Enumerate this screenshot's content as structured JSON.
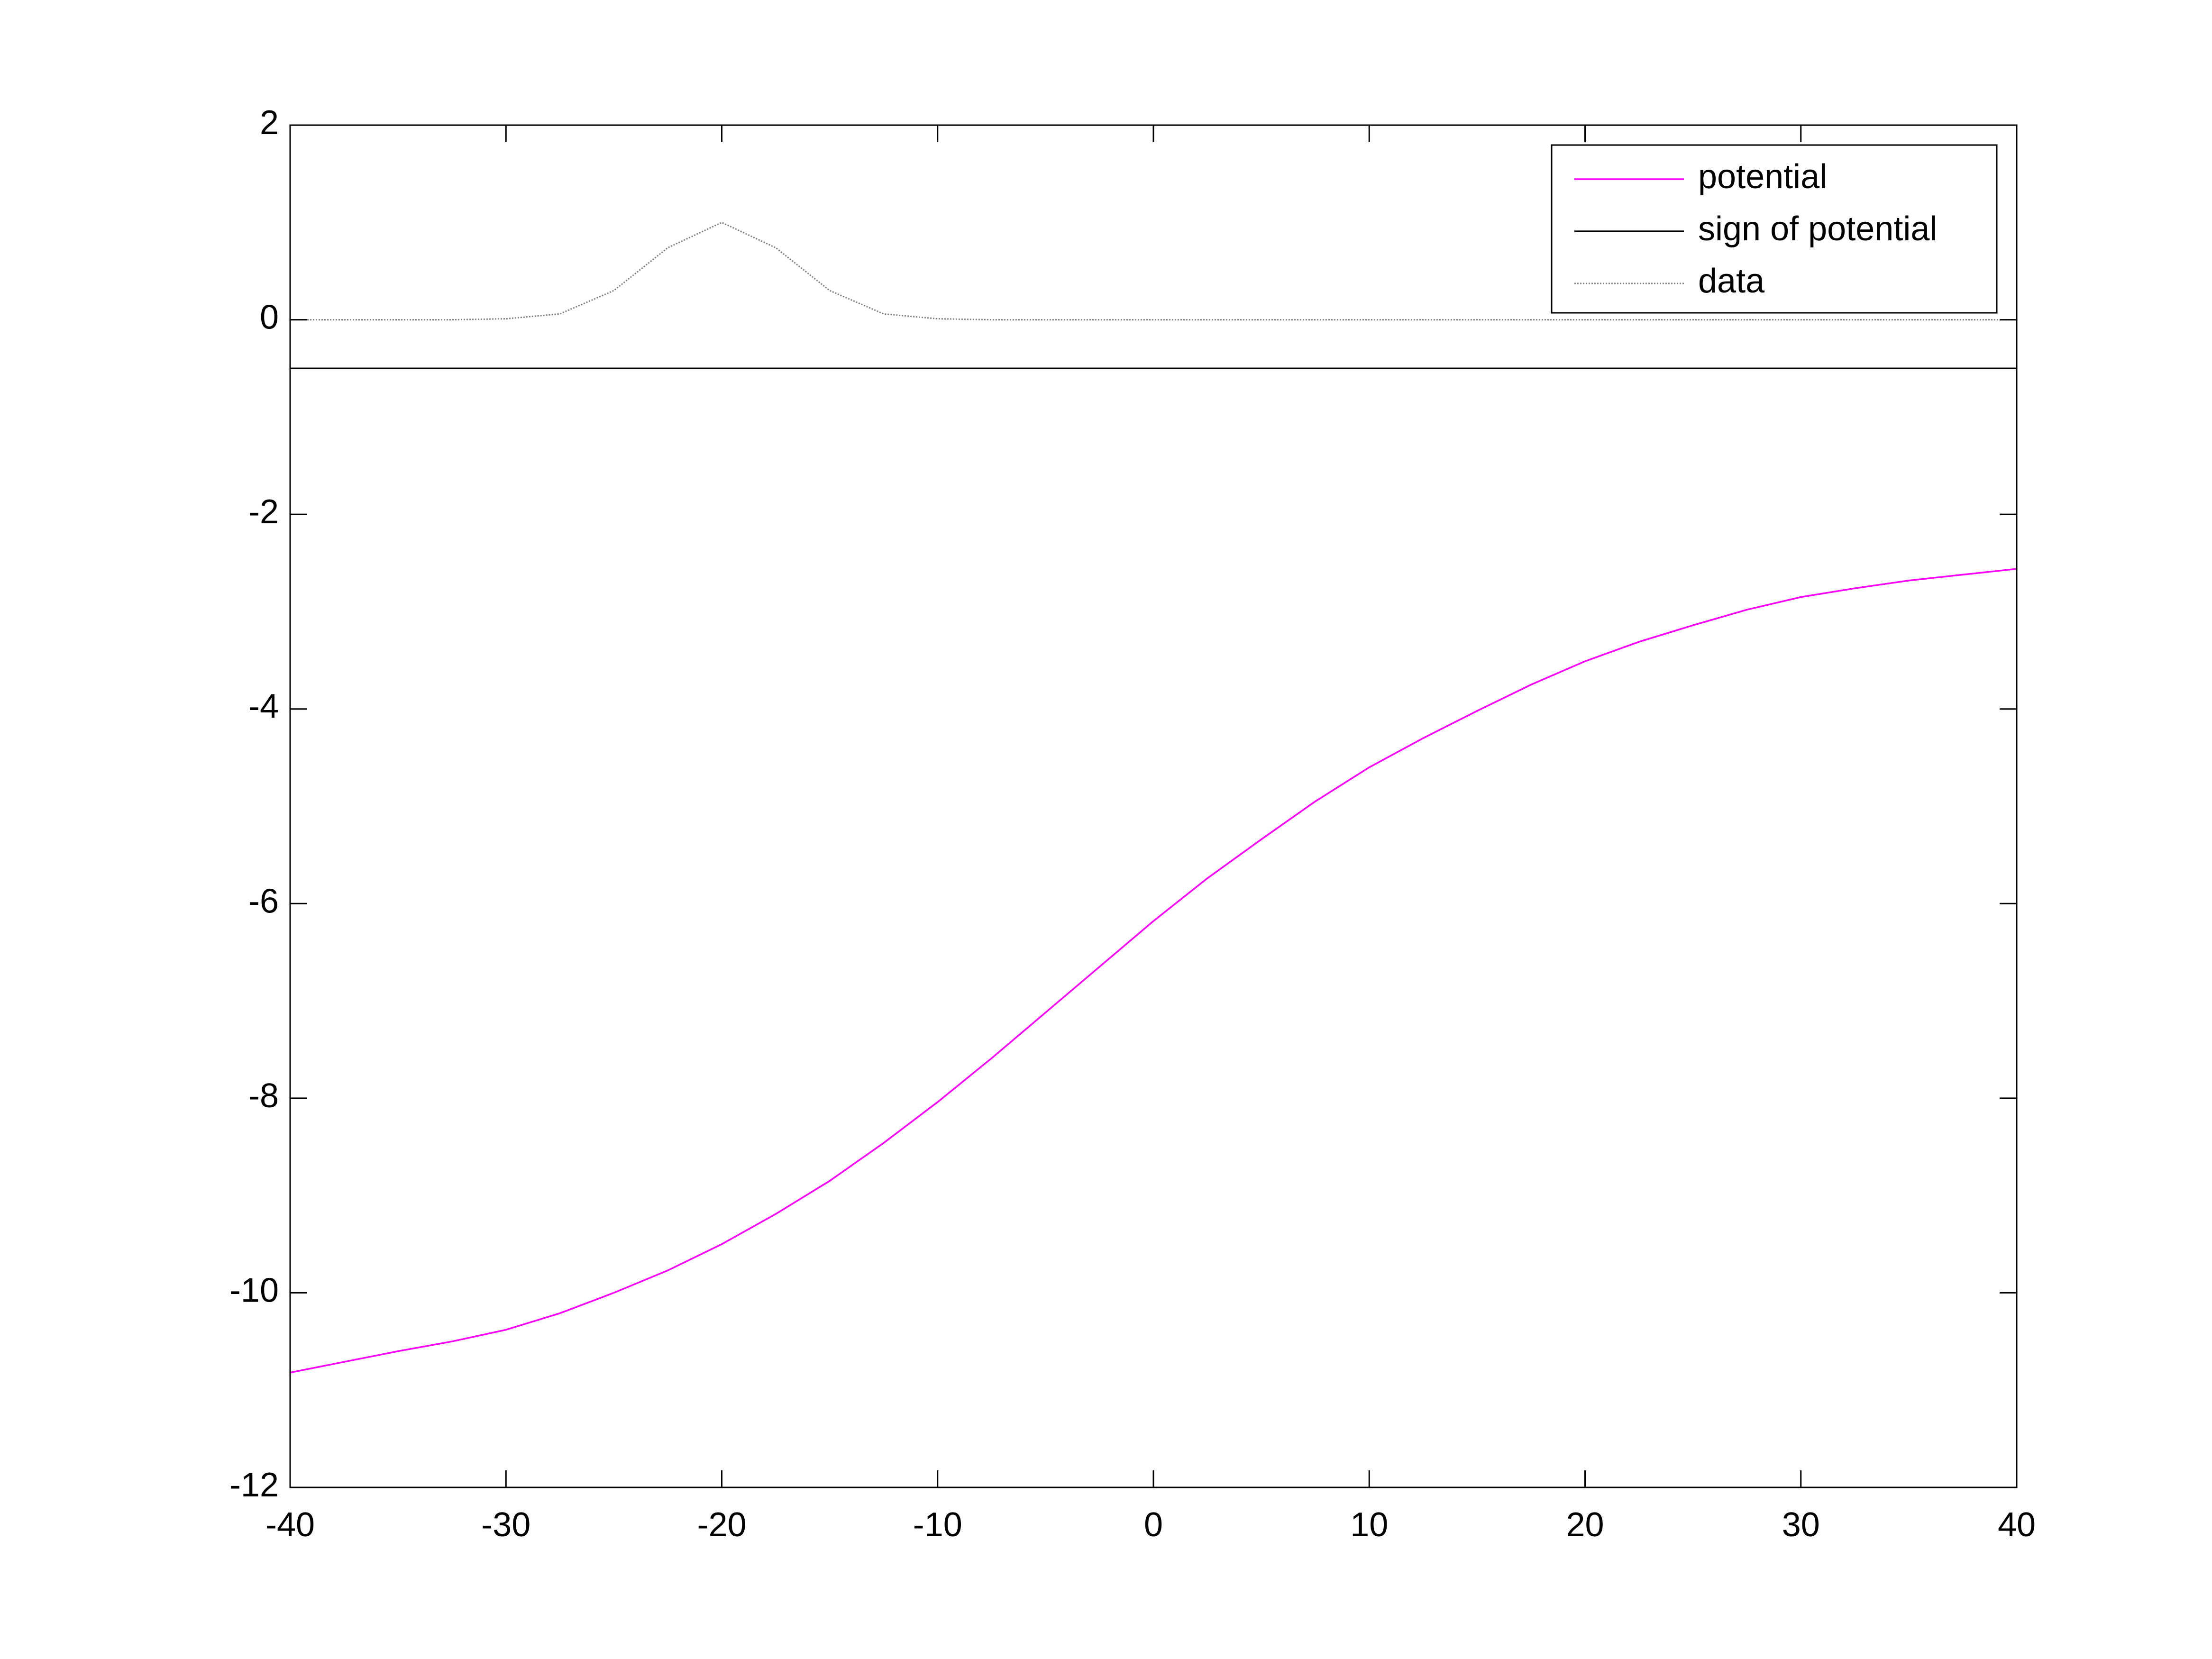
{
  "chart_data": {
    "type": "line",
    "x": [
      -40,
      -37.5,
      -35,
      -32.5,
      -30,
      -27.5,
      -25,
      -22.5,
      -20,
      -17.5,
      -15,
      -12.5,
      -10,
      -7.5,
      -5,
      -2.5,
      0,
      2.5,
      5,
      7.5,
      10,
      12.5,
      15,
      17.5,
      20,
      22.5,
      25,
      27.5,
      30,
      32.5,
      35,
      37.5,
      40
    ],
    "series": [
      {
        "name": "potential",
        "color": "#ff00ff",
        "style": "solid",
        "values": [
          -10.82,
          -10.71,
          -10.6,
          -10.5,
          -10.38,
          -10.21,
          -10.0,
          -9.77,
          -9.5,
          -9.19,
          -8.85,
          -8.46,
          -8.04,
          -7.59,
          -7.12,
          -6.65,
          -6.18,
          -5.74,
          -5.34,
          -4.95,
          -4.6,
          -4.3,
          -4.02,
          -3.75,
          -3.51,
          -3.31,
          -3.14,
          -2.98,
          -2.85,
          -2.76,
          -2.68,
          -2.62,
          -2.56
        ]
      },
      {
        "name": "sign of potential",
        "color": "#000000",
        "style": "solid",
        "values": [
          -0.5,
          -0.5,
          -0.5,
          -0.5,
          -0.5,
          -0.5,
          -0.5,
          -0.5,
          -0.5,
          -0.5,
          -0.5,
          -0.5,
          -0.5,
          -0.5,
          -0.5,
          -0.5,
          -0.5,
          -0.5,
          -0.5,
          -0.5,
          -0.5,
          -0.5,
          -0.5,
          -0.5,
          -0.5,
          -0.5,
          -0.5,
          -0.5,
          -0.5,
          -0.5,
          -0.5,
          -0.5,
          -0.5
        ]
      },
      {
        "name": "data",
        "color": "#808080",
        "style": "dotted",
        "values": [
          0,
          0,
          0,
          0,
          0.01,
          0.06,
          0.3,
          0.74,
          1,
          0.74,
          0.3,
          0.06,
          0.01,
          0,
          0,
          0,
          0,
          0,
          0,
          0,
          0,
          0,
          0,
          0,
          0,
          0,
          0,
          0,
          0,
          0,
          0,
          0,
          0
        ]
      }
    ],
    "xlim": [
      -40,
      40
    ],
    "xticks": [
      -40,
      -30,
      -20,
      -10,
      0,
      10,
      20,
      30,
      40
    ],
    "ylim": [
      -12,
      2
    ],
    "yticks": [
      -12,
      -10,
      -8,
      -6,
      -4,
      -2,
      0,
      2
    ],
    "grid": false,
    "legend": "upper right"
  }
}
